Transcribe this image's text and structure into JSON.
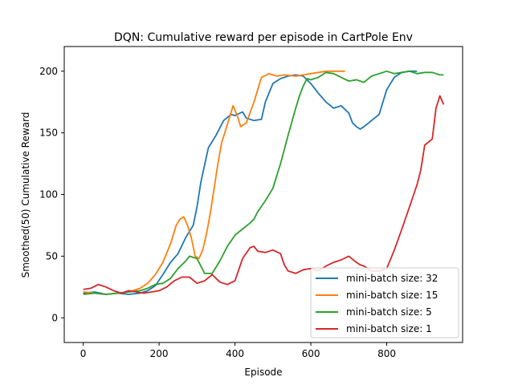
{
  "chart_data": {
    "type": "line",
    "title": "DQN: Cumulative reward per episode in CartPole Env",
    "xlabel": "Episode",
    "ylabel": "Smoothed(50) Cumulative Reward",
    "xlim": [
      -50,
      1000
    ],
    "ylim": [
      -20,
      220
    ],
    "xticks": [
      0,
      200,
      400,
      600,
      800
    ],
    "yticks": [
      0,
      50,
      100,
      150,
      200
    ],
    "grid": false,
    "legend_position": "lower-right",
    "series": [
      {
        "name": "mini-batch size: 32",
        "color": "#1f77b4",
        "x": [
          0,
          30,
          60,
          90,
          120,
          150,
          170,
          190,
          210,
          230,
          250,
          270,
          290,
          300,
          310,
          330,
          350,
          370,
          390,
          400,
          420,
          430,
          450,
          470,
          480,
          500,
          520,
          540,
          560,
          580,
          600,
          620,
          640,
          660,
          680,
          700,
          710,
          720,
          730,
          740,
          760,
          780,
          800,
          820,
          840,
          860,
          880
        ],
        "y": [
          20,
          21,
          19,
          20,
          19,
          20,
          22,
          26,
          35,
          45,
          52,
          65,
          75,
          90,
          110,
          138,
          148,
          160,
          165,
          164,
          167,
          162,
          160,
          161,
          175,
          190,
          194,
          196,
          197,
          196,
          190,
          182,
          175,
          170,
          172,
          166,
          158,
          155,
          153,
          155,
          160,
          165,
          185,
          195,
          199,
          200,
          200
        ]
      },
      {
        "name": "mini-batch size: 15",
        "color": "#ff7f0e",
        "x": [
          0,
          30,
          60,
          90,
          120,
          150,
          170,
          190,
          210,
          230,
          245,
          255,
          265,
          275,
          285,
          295,
          305,
          315,
          325,
          335,
          345,
          355,
          365,
          375,
          385,
          395,
          405,
          415,
          430,
          450,
          470,
          490,
          510,
          530,
          560,
          600,
          640,
          690
        ],
        "y": [
          21,
          20,
          19,
          20,
          21,
          24,
          28,
          35,
          45,
          60,
          75,
          80,
          82,
          75,
          65,
          50,
          48,
          55,
          68,
          85,
          105,
          125,
          142,
          152,
          162,
          172,
          165,
          155,
          158,
          175,
          195,
          198,
          196,
          197,
          196,
          198,
          200,
          200
        ]
      },
      {
        "name": "mini-batch size: 5",
        "color": "#2ca02c",
        "x": [
          0,
          30,
          60,
          90,
          120,
          150,
          170,
          190,
          210,
          230,
          250,
          270,
          280,
          300,
          310,
          320,
          340,
          360,
          380,
          400,
          420,
          440,
          450,
          460,
          480,
          500,
          510,
          520,
          540,
          560,
          570,
          580,
          590,
          600,
          620,
          640,
          660,
          680,
          700,
          720,
          740,
          760,
          780,
          800,
          820,
          840,
          860,
          880,
          900,
          920,
          940,
          950
        ],
        "y": [
          19,
          20,
          19,
          20,
          21,
          22,
          24,
          27,
          28,
          32,
          40,
          46,
          50,
          48,
          42,
          36,
          36,
          46,
          58,
          67,
          72,
          77,
          80,
          86,
          95,
          105,
          115,
          125,
          148,
          170,
          180,
          188,
          194,
          193,
          195,
          199,
          198,
          195,
          192,
          193,
          191,
          196,
          198,
          200,
          198,
          199,
          200,
          198,
          199,
          199,
          197,
          197
        ]
      },
      {
        "name": "mini-batch size: 1",
        "color": "#d62728",
        "x": [
          0,
          20,
          40,
          60,
          80,
          100,
          120,
          140,
          160,
          180,
          200,
          220,
          240,
          260,
          280,
          300,
          320,
          340,
          360,
          380,
          400,
          420,
          440,
          450,
          460,
          480,
          500,
          520,
          530,
          540,
          560,
          580,
          600,
          620,
          640,
          660,
          680,
          700,
          720,
          730,
          740,
          760,
          780,
          800,
          820,
          840,
          860,
          870,
          880,
          890,
          900,
          920,
          930,
          940,
          950
        ],
        "y": [
          23,
          24,
          27,
          25,
          22,
          20,
          22,
          21,
          20,
          21,
          22,
          25,
          30,
          33,
          33,
          28,
          30,
          35,
          29,
          27,
          30,
          48,
          57,
          58,
          54,
          53,
          55,
          52,
          43,
          38,
          36,
          39,
          40,
          38,
          42,
          45,
          47,
          50,
          45,
          43,
          42,
          38,
          38,
          40,
          55,
          72,
          90,
          99,
          108,
          120,
          140,
          145,
          170,
          180,
          173
        ]
      }
    ]
  }
}
